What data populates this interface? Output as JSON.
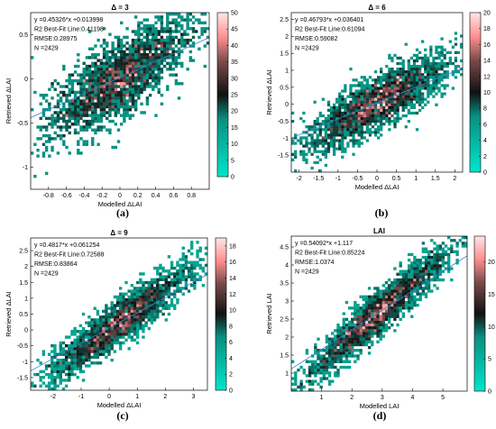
{
  "colormap": {
    "low": "#00e6cc",
    "mid": "#111111",
    "high": "#ff8f8f",
    "top": "#ffe6e6",
    "axis": "#000000"
  },
  "chart_data": [
    {
      "type": "heatmap",
      "panel_label": "(a)",
      "title": "Δ = 3",
      "xlabel": "Modelled ΔLAI",
      "ylabel": "Retrieved ΔLAI",
      "xlim": [
        -1,
        1
      ],
      "ylim": [
        -1.25,
        0.75
      ],
      "xticks": [
        "-0.8",
        "-0.6",
        "-0.4",
        "-0.2",
        "0",
        "0.2",
        "0.4",
        "0.6",
        "0.8"
      ],
      "xtick_values": [
        -0.8,
        -0.6,
        -0.4,
        -0.2,
        0,
        0.2,
        0.4,
        0.6,
        0.8
      ],
      "yticks": [
        "-1",
        "-0.5",
        "0",
        "0.5"
      ],
      "ytick_values": [
        -1,
        -0.5,
        0,
        0.5
      ],
      "fit_slope": 0.45326,
      "fit_intercept": 0.013998,
      "spread": 0.22,
      "n_points": 2429,
      "annotations": [
        "y =0.45326*x +0.013998",
        "R2 Best-Fit Line:0.41198",
        "RMSE:0.28975",
        "N =2429"
      ],
      "colorbar": {
        "max": 50,
        "ticks": [
          "0",
          "5",
          "10",
          "15",
          "20",
          "25",
          "30",
          "35",
          "40",
          "45",
          "50"
        ],
        "tick_values": [
          0,
          5,
          10,
          15,
          20,
          25,
          30,
          35,
          40,
          45,
          50
        ]
      }
    },
    {
      "type": "heatmap",
      "panel_label": "(b)",
      "title": "Δ = 6",
      "xlabel": "Modelled ΔLAI",
      "ylabel": "Retrieved ΔLAI",
      "xlim": [
        -2.2,
        2.2
      ],
      "ylim": [
        -2,
        2.7
      ],
      "xticks": [
        "-2",
        "-1.5",
        "-1",
        "-0.5",
        "0",
        "0.5",
        "1",
        "1.5",
        "2"
      ],
      "xtick_values": [
        -2,
        -1.5,
        -1,
        -0.5,
        0,
        0.5,
        1,
        1.5,
        2
      ],
      "yticks": [
        "-1.5",
        "-1",
        "-0.5",
        "0",
        "0.5",
        "1",
        "1.5",
        "2",
        "2.5"
      ],
      "ytick_values": [
        -1.5,
        -1,
        -0.5,
        0,
        0.5,
        1,
        1.5,
        2,
        2.5
      ],
      "fit_slope": 0.46793,
      "fit_intercept": 0.036401,
      "spread": 0.4,
      "n_points": 2429,
      "annotations": [
        "y =0.46793*x +0.036401",
        "R2 Best-Fit Line:0.61094",
        "RMSE:0.59082",
        "N =2429"
      ],
      "colorbar": {
        "max": 20,
        "ticks": [
          "0",
          "2",
          "4",
          "6",
          "8",
          "10",
          "12",
          "14",
          "16",
          "18",
          "20"
        ],
        "tick_values": [
          0,
          2,
          4,
          6,
          8,
          10,
          12,
          14,
          16,
          18,
          20
        ]
      }
    },
    {
      "type": "heatmap",
      "panel_label": "(c)",
      "title": "Δ = 9",
      "xlabel": "Modelled ΔLAI",
      "ylabel": "Retrieved ΔLAI",
      "xlim": [
        -2.8,
        3.5
      ],
      "ylim": [
        -1.9,
        2.9
      ],
      "xticks": [
        "-2",
        "-1",
        "0",
        "1",
        "2",
        "3"
      ],
      "xtick_values": [
        -2,
        -1,
        0,
        1,
        2,
        3
      ],
      "yticks": [
        "-1.5",
        "-1",
        "-0.5",
        "0",
        "0.5",
        "1",
        "1.5",
        "2",
        "2.5"
      ],
      "ytick_values": [
        -1.5,
        -1,
        -0.5,
        0,
        0.5,
        1,
        1.5,
        2,
        2.5
      ],
      "fit_slope": 0.4817,
      "fit_intercept": 0.061254,
      "spread": 0.35,
      "n_points": 2429,
      "annotations": [
        "y =0.4817*x +0.061254",
        "R2 Best-Fit Line:0.72588",
        "RMSE:0.83864",
        "N =2429"
      ],
      "colorbar": {
        "max": 19,
        "ticks": [
          "0",
          "2",
          "4",
          "6",
          "8",
          "10",
          "12",
          "14",
          "16",
          "18"
        ],
        "tick_values": [
          0,
          2,
          4,
          6,
          8,
          10,
          12,
          14,
          16,
          18
        ]
      }
    },
    {
      "type": "heatmap",
      "panel_label": "(d)",
      "title": "LAI",
      "xlabel": "Modelled LAI",
      "ylabel": "Retrieved LAI",
      "xlim": [
        0,
        5.8
      ],
      "ylim": [
        0.5,
        4.8
      ],
      "xticks": [
        "1",
        "2",
        "3",
        "4",
        "5"
      ],
      "xtick_values": [
        1,
        2,
        3,
        4,
        5
      ],
      "yticks": [
        "1",
        "1.5",
        "2",
        "2.5",
        "3",
        "3.5",
        "4",
        "4.5"
      ],
      "ytick_values": [
        1,
        1.5,
        2,
        2.5,
        3,
        3.5,
        4,
        4.5
      ],
      "fit_slope": 0.54092,
      "fit_intercept": 1.117,
      "spread": 0.3,
      "n_points": 2429,
      "annotations": [
        "y =0.54092*x +1.117",
        "R2 Best-Fit Line:0.85224",
        "RMSE:1.0374",
        "N =2429"
      ],
      "colorbar": {
        "max": 24,
        "ticks": [
          "0",
          "5",
          "10",
          "15",
          "20"
        ],
        "tick_values": [
          0,
          5,
          10,
          15,
          20
        ]
      }
    }
  ]
}
